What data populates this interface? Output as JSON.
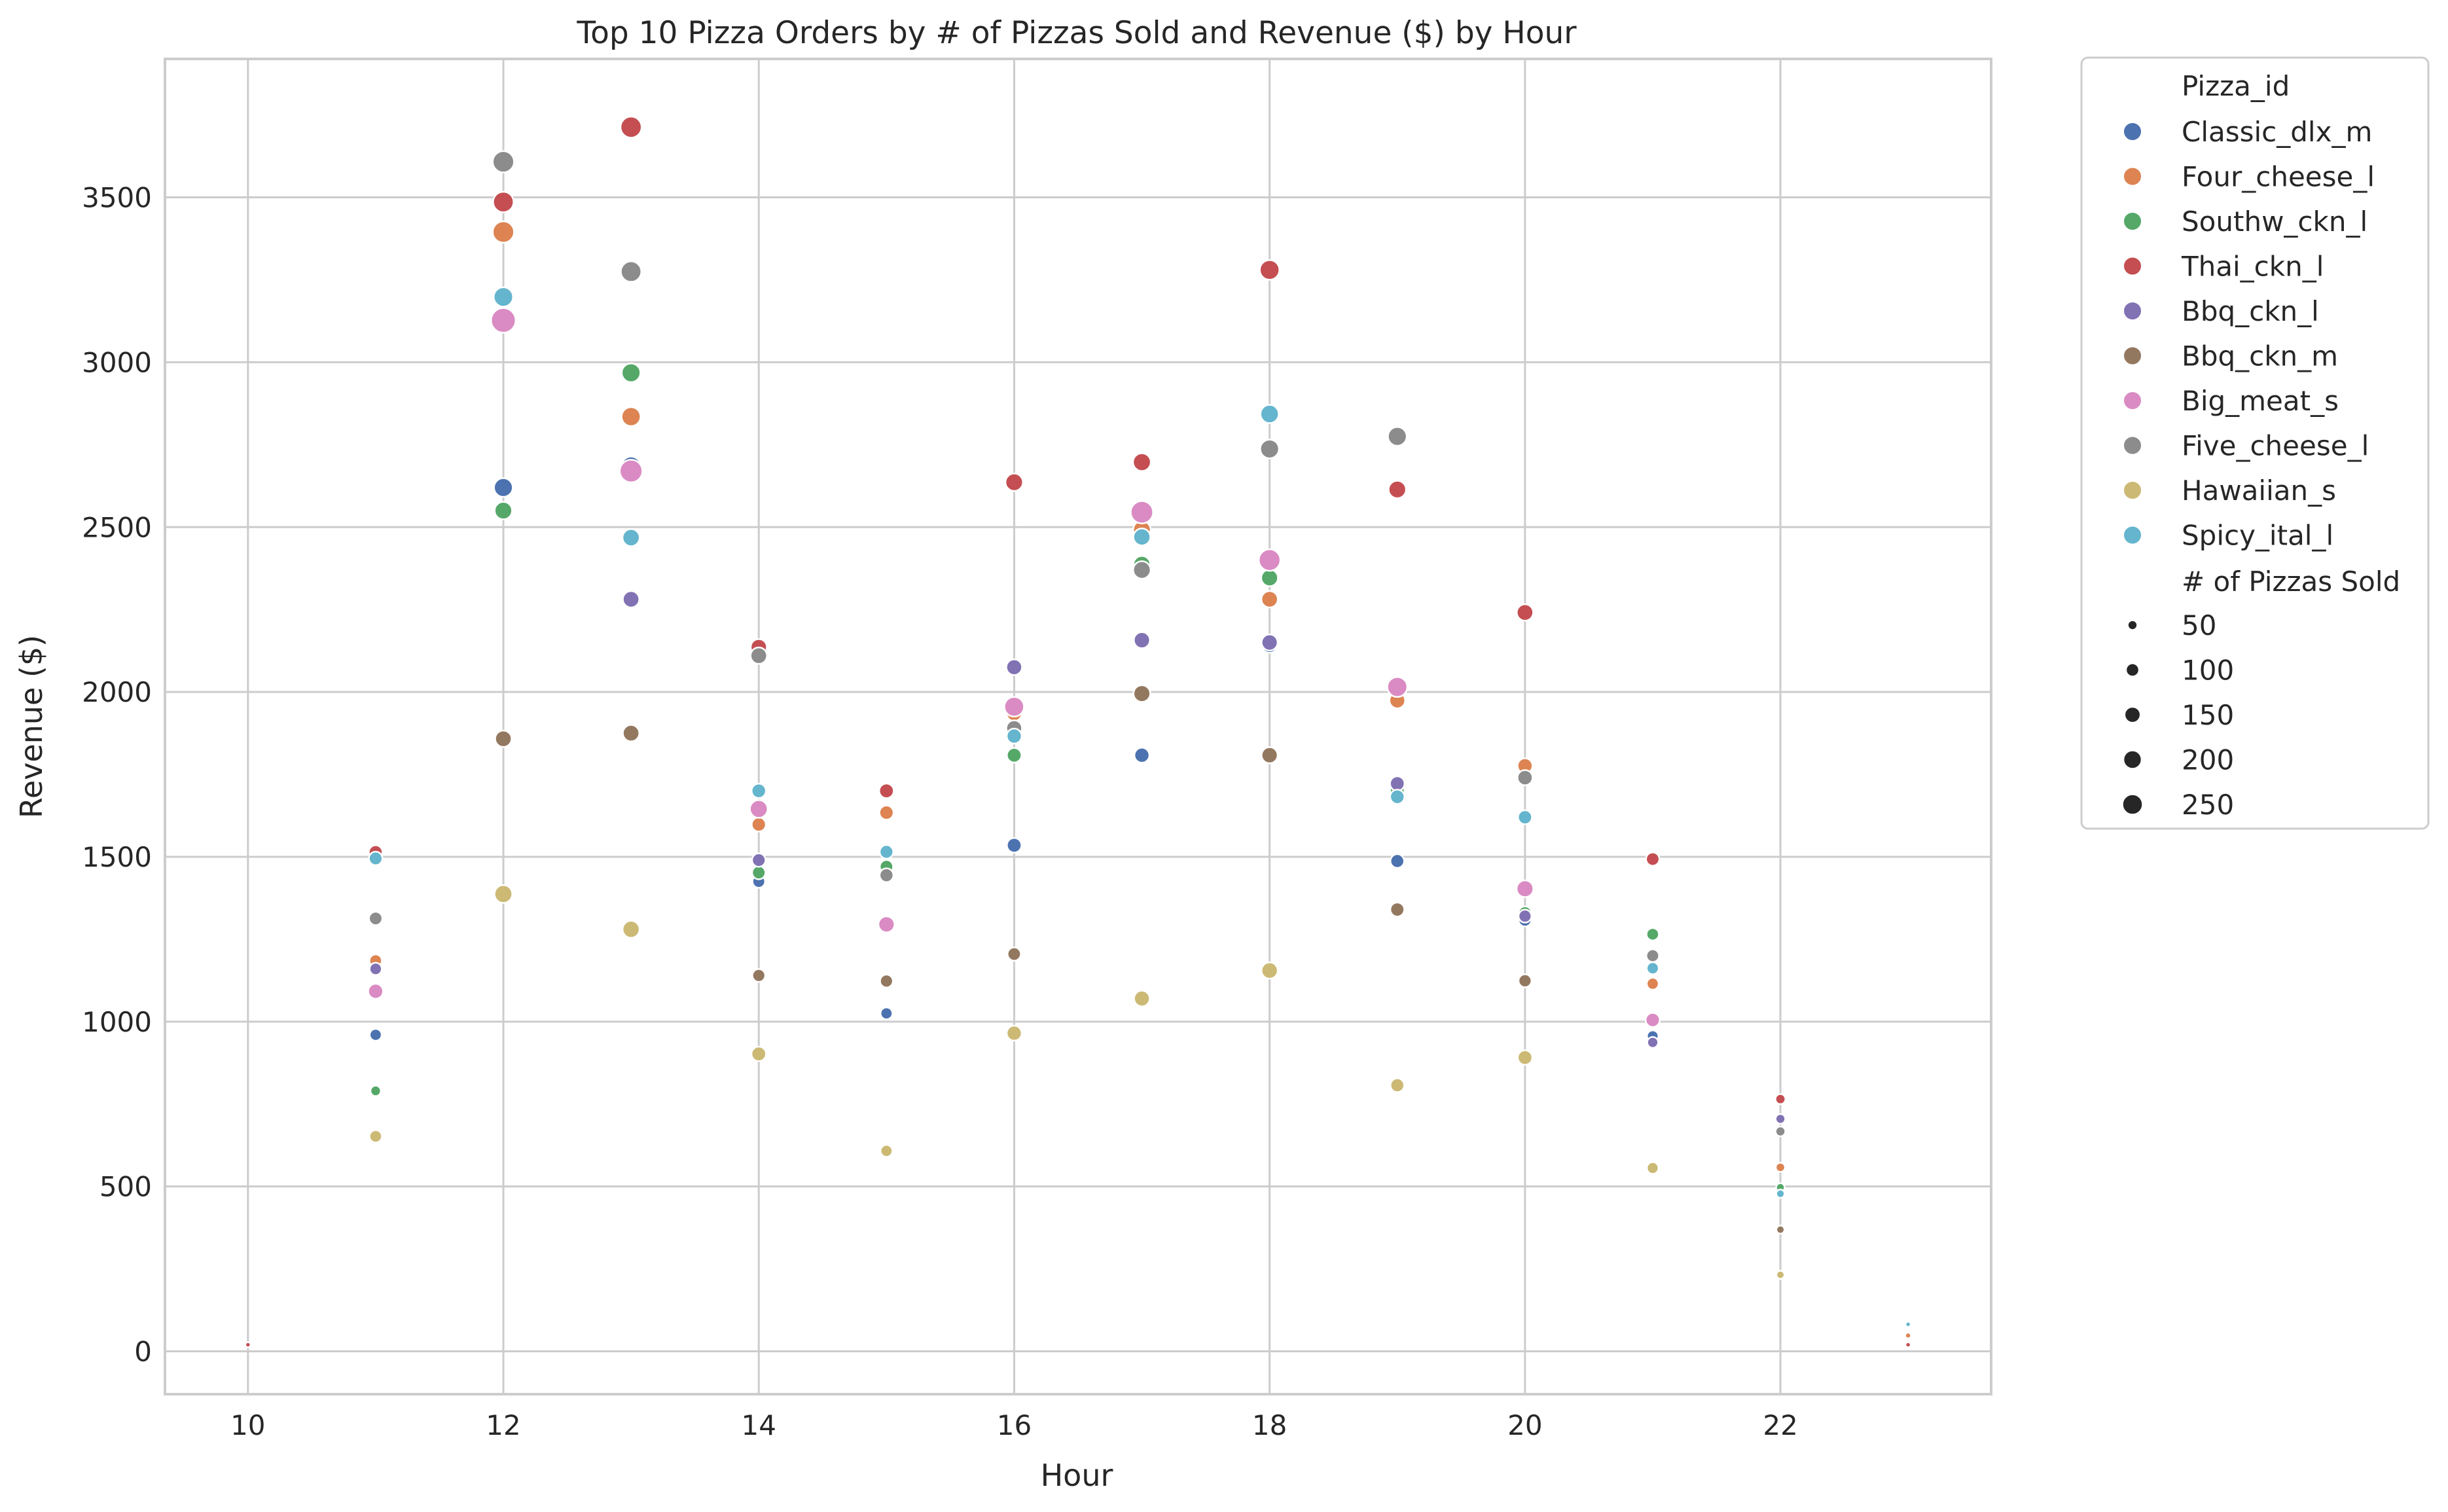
{
  "chart_data": {
    "type": "scatter",
    "title": "Top 10 Pizza Orders by # of Pizzas Sold and Revenue ($) by Hour",
    "xlabel": "Hour",
    "ylabel": "Revenue ($)",
    "xlim": [
      9.35,
      23.65
    ],
    "ylim": [
      -130,
      3920
    ],
    "xticks": [
      10,
      12,
      14,
      16,
      18,
      20,
      22
    ],
    "yticks": [
      0,
      500,
      1000,
      1500,
      2000,
      2500,
      3000,
      3500
    ],
    "grid": true,
    "legend_position": "outside-right",
    "legend": {
      "hue_title": "Pizza_id",
      "size_title": "# of Pizzas Sold",
      "size_levels": [
        50,
        100,
        150,
        200,
        250
      ]
    },
    "series": [
      {
        "name": "Classic_dlx_m",
        "color": "#4c72b0",
        "points": [
          [
            11,
            960,
            55
          ],
          [
            12,
            2620,
            145
          ],
          [
            13,
            2685,
            150
          ],
          [
            14,
            1425,
            62
          ],
          [
            15,
            1025,
            55
          ],
          [
            16,
            1535,
            85
          ],
          [
            17,
            1808,
            90
          ],
          [
            18,
            2143,
            105
          ],
          [
            19,
            1487,
            75
          ],
          [
            20,
            1308,
            65
          ],
          [
            21,
            956,
            50
          ]
        ]
      },
      {
        "name": "Four_cheese_l",
        "color": "#dd8452",
        "points": [
          [
            11,
            1185,
            60
          ],
          [
            12,
            3395,
            190
          ],
          [
            13,
            2835,
            150
          ],
          [
            14,
            1598,
            80
          ],
          [
            15,
            1634,
            80
          ],
          [
            16,
            1935,
            95
          ],
          [
            17,
            2492,
            125
          ],
          [
            18,
            2281,
            110
          ],
          [
            19,
            1974,
            100
          ],
          [
            20,
            1776,
            90
          ],
          [
            21,
            1115,
            55
          ],
          [
            22,
            558,
            30
          ],
          [
            23,
            48,
            8
          ]
        ]
      },
      {
        "name": "Southw_ckn_l",
        "color": "#55a868",
        "points": [
          [
            11,
            790,
            40
          ],
          [
            12,
            2550,
            125
          ],
          [
            13,
            2968,
            145
          ],
          [
            14,
            1452,
            70
          ],
          [
            15,
            1470,
            70
          ],
          [
            16,
            1808,
            85
          ],
          [
            17,
            2387,
            115
          ],
          [
            18,
            2346,
            115
          ],
          [
            19,
            1700,
            85
          ],
          [
            20,
            1330,
            65
          ],
          [
            21,
            1265,
            60
          ],
          [
            22,
            497,
            25
          ]
        ]
      },
      {
        "name": "Thai_ckn_l",
        "color": "#c44e52",
        "points": [
          [
            10,
            20,
            5
          ],
          [
            11,
            1514,
            75
          ],
          [
            12,
            3486,
            175
          ],
          [
            13,
            3713,
            185
          ],
          [
            14,
            2136,
            105
          ],
          [
            15,
            1700,
            85
          ],
          [
            16,
            2636,
            125
          ],
          [
            17,
            2697,
            130
          ],
          [
            18,
            3280,
            160
          ],
          [
            19,
            2614,
            125
          ],
          [
            20,
            2241,
            110
          ],
          [
            21,
            1493,
            70
          ],
          [
            22,
            765,
            37
          ],
          [
            23,
            20,
            5
          ]
        ]
      },
      {
        "name": "Bbq_ckn_l",
        "color": "#8172b3",
        "points": [
          [
            11,
            1160,
            58
          ],
          [
            13,
            2281,
            110
          ],
          [
            14,
            1490,
            72
          ],
          [
            16,
            2075,
            100
          ],
          [
            17,
            2157,
            105
          ],
          [
            18,
            2150,
            105
          ],
          [
            19,
            1722,
            85
          ],
          [
            20,
            1320,
            65
          ],
          [
            21,
            937,
            45
          ],
          [
            22,
            705,
            34
          ]
        ]
      },
      {
        "name": "Bbq_ckn_m",
        "color": "#937860",
        "points": [
          [
            12,
            1858,
            110
          ],
          [
            13,
            1875,
            110
          ],
          [
            14,
            1140,
            65
          ],
          [
            15,
            1123,
            65
          ],
          [
            16,
            1205,
            70
          ],
          [
            17,
            1995,
            115
          ],
          [
            18,
            1808,
            105
          ],
          [
            19,
            1340,
            78
          ],
          [
            20,
            1124,
            66
          ],
          [
            22,
            369,
            22
          ]
        ]
      },
      {
        "name": "Big_meat_s",
        "color": "#da8bc3",
        "points": [
          [
            11,
            1092,
            90
          ],
          [
            12,
            3127,
            255
          ],
          [
            13,
            2670,
            215
          ],
          [
            14,
            1645,
            130
          ],
          [
            15,
            1295,
            105
          ],
          [
            16,
            1955,
            160
          ],
          [
            17,
            2545,
            210
          ],
          [
            18,
            2400,
            195
          ],
          [
            19,
            2015,
            165
          ],
          [
            20,
            1403,
            115
          ],
          [
            21,
            1005,
            80
          ]
        ]
      },
      {
        "name": "Five_cheese_l",
        "color": "#8c8c8c",
        "points": [
          [
            11,
            1313,
            70
          ],
          [
            12,
            3608,
            190
          ],
          [
            13,
            3275,
            175
          ],
          [
            14,
            2110,
            110
          ],
          [
            15,
            1444,
            75
          ],
          [
            16,
            1890,
            100
          ],
          [
            17,
            2370,
            125
          ],
          [
            18,
            2737,
            145
          ],
          [
            19,
            2775,
            145
          ],
          [
            20,
            1740,
            92
          ],
          [
            21,
            1200,
            63
          ],
          [
            22,
            667,
            35
          ]
        ]
      },
      {
        "name": "Hawaiian_s",
        "color": "#ccb974",
        "points": [
          [
            11,
            652,
            60
          ],
          [
            12,
            1387,
            130
          ],
          [
            13,
            1280,
            118
          ],
          [
            14,
            902,
            85
          ],
          [
            15,
            608,
            55
          ],
          [
            16,
            965,
            90
          ],
          [
            17,
            1070,
            100
          ],
          [
            18,
            1155,
            108
          ],
          [
            19,
            807,
            75
          ],
          [
            20,
            891,
            84
          ],
          [
            21,
            556,
            52
          ],
          [
            22,
            232,
            22
          ]
        ]
      },
      {
        "name": "Spicy_ital_l",
        "color": "#64b5cd",
        "points": [
          [
            11,
            1495,
            72
          ],
          [
            12,
            3198,
            155
          ],
          [
            13,
            2468,
            120
          ],
          [
            14,
            1700,
            82
          ],
          [
            15,
            1515,
            73
          ],
          [
            16,
            1866,
            90
          ],
          [
            17,
            2470,
            118
          ],
          [
            18,
            2843,
            137
          ],
          [
            19,
            1682,
            82
          ],
          [
            20,
            1620,
            78
          ],
          [
            21,
            1162,
            56
          ],
          [
            22,
            478,
            23
          ],
          [
            23,
            82,
            5
          ]
        ]
      }
    ]
  }
}
